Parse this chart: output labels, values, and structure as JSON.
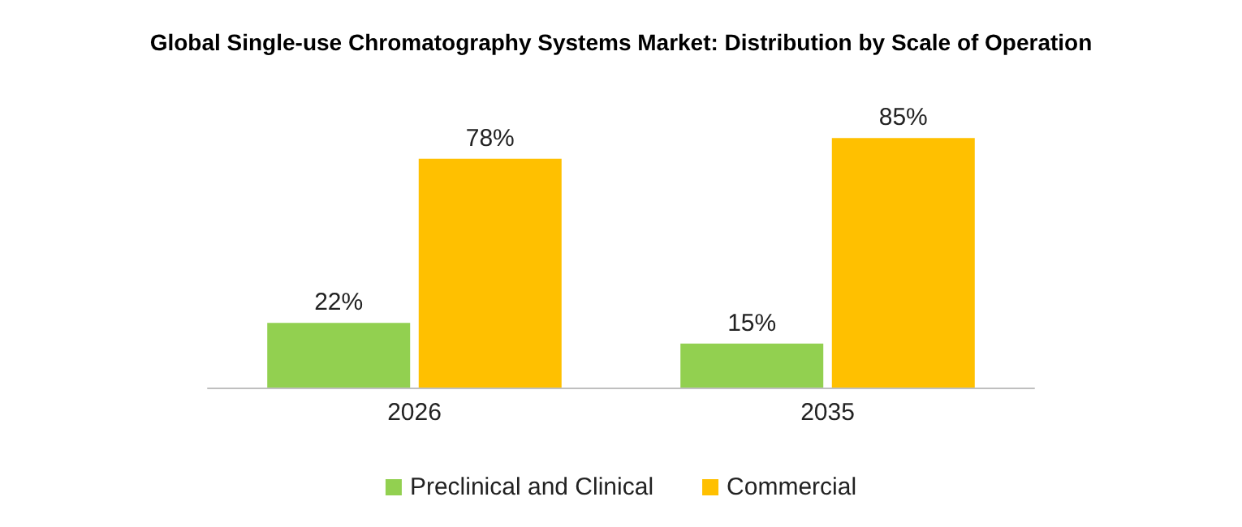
{
  "chart_data": {
    "type": "bar",
    "title": "Global Single-use Chromatography Systems Market: Distribution by Scale of Operation",
    "categories": [
      "2026",
      "2035"
    ],
    "series": [
      {
        "name": "Preclinical and Clinical",
        "color": "#92d050",
        "values": [
          22,
          15
        ],
        "value_labels": [
          "22%",
          "15%"
        ]
      },
      {
        "name": "Commercial",
        "color": "#ffc000",
        "values": [
          78,
          85
        ],
        "value_labels": [
          "78%",
          "85%"
        ]
      }
    ],
    "legend": "bottom"
  }
}
